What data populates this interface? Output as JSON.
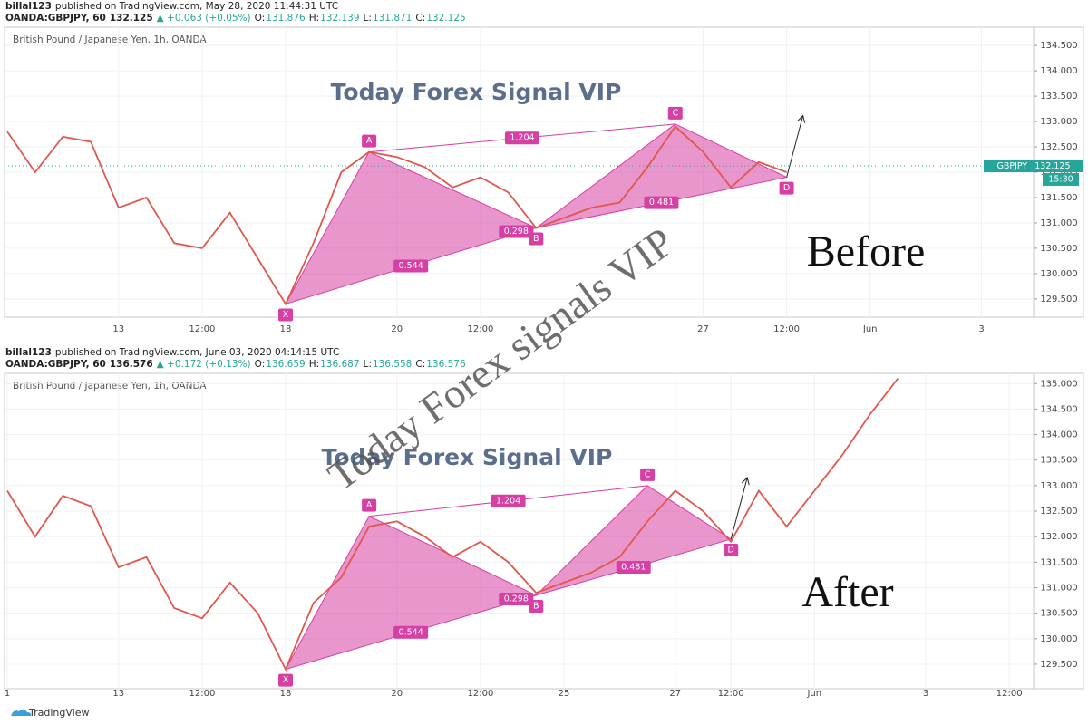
{
  "chart_data": [
    {
      "type": "line",
      "author": "billal123",
      "published": "published on TradingView.com, May 28, 2020 11:44:31 UTC",
      "quote": [
        "OANDA:GBPJPY, 60",
        "132.125",
        "▲ +0.063 (+0.05%)",
        "O:",
        "131.876",
        "H:",
        "132.139",
        "L:",
        "131.871",
        "C:",
        "132.125"
      ],
      "title": "British Pound / Japanese Yen, 1h, OANDA",
      "overlay_title": "Today Forex Signal VIP",
      "stage": "Before",
      "categories": [
        null,
        null,
        null,
        null,
        "13",
        null,
        null,
        "12:00",
        null,
        null,
        "18",
        null,
        null,
        null,
        "20",
        null,
        null,
        "12:00",
        null,
        null,
        null,
        null,
        null,
        null,
        null,
        "27",
        null,
        null,
        "12:00",
        null,
        null,
        "Jun",
        null,
        null,
        null,
        "3",
        null
      ],
      "color": "#e0574c",
      "values": [
        132.8,
        132.0,
        132.7,
        132.6,
        131.3,
        131.5,
        130.6,
        130.5,
        131.2,
        130.3,
        129.4,
        130.6,
        132.0,
        132.4,
        132.3,
        132.1,
        131.7,
        131.9,
        131.6,
        130.9,
        131.1,
        131.3,
        131.4,
        132.1,
        132.9,
        132.4,
        131.7,
        132.2,
        132.0,
        null,
        null,
        null,
        null,
        null,
        null,
        null,
        null
      ],
      "pattern": {
        "color": "#d63fa3",
        "values": [
          null,
          null,
          null,
          null,
          null,
          null,
          null,
          null,
          null,
          null,
          129.4,
          null,
          null,
          132.4,
          null,
          null,
          null,
          null,
          null,
          130.9,
          null,
          null,
          null,
          null,
          132.95,
          null,
          null,
          null,
          131.9,
          null,
          null,
          null,
          null,
          null,
          null,
          null,
          null
        ],
        "point_labels": [
          null,
          null,
          null,
          null,
          null,
          null,
          null,
          null,
          null,
          null,
          "X",
          null,
          null,
          "A",
          null,
          null,
          null,
          null,
          null,
          "B",
          null,
          null,
          null,
          null,
          "C",
          null,
          null,
          null,
          "D",
          null,
          null,
          null,
          null,
          null,
          null,
          null,
          null
        ],
        "ratios": [
          "0.544",
          "1.204",
          "0.298",
          "0.481"
        ]
      },
      "last_symbol": "GBPJPY",
      "last_price": 132.125,
      "countdown": "15:30",
      "ylim": [
        129.14,
        134.86
      ],
      "yticks": [
        {
          "value": 129.5,
          "label": "129.500"
        },
        {
          "value": 130,
          "label": "130.000"
        },
        {
          "value": 130.5,
          "label": "130.500"
        },
        {
          "value": 131,
          "label": "131.000"
        },
        {
          "value": 131.5,
          "label": "131.500"
        },
        {
          "value": 132,
          "label": "132.000"
        },
        {
          "value": 132.5,
          "label": "132.500"
        },
        {
          "value": 133,
          "label": "133.000"
        },
        {
          "value": 133.5,
          "label": "133.500"
        },
        {
          "value": 134,
          "label": "134.000"
        },
        {
          "value": 134.5,
          "label": "134.500"
        }
      ],
      "grid": true
    },
    {
      "type": "line",
      "author": "billal123",
      "published": "published on TradingView.com, June 03, 2020 04:14:15 UTC",
      "quote": [
        "OANDA:GBPJPY, 60",
        "136.576",
        "▲ +0.172 (+0.13%)",
        "O:",
        "136.659",
        "H:",
        "136.687",
        "L:",
        "136.558",
        "C:",
        "136.576"
      ],
      "title": "British Pound / Japanese Yen, 1h, OANDA",
      "overlay_title": "Today Forex Signal VIP",
      "stage": "After",
      "categories": [
        "1",
        null,
        null,
        null,
        "13",
        null,
        null,
        "12:00",
        null,
        null,
        "18",
        null,
        null,
        null,
        "20",
        null,
        null,
        "12:00",
        null,
        null,
        "25",
        null,
        null,
        null,
        "27",
        null,
        "12:00",
        null,
        null,
        "Jun",
        null,
        null,
        null,
        "3",
        null,
        null,
        "12:00"
      ],
      "color": "#e0574c",
      "values": [
        132.9,
        132.0,
        132.8,
        132.6,
        131.4,
        131.6,
        130.6,
        130.4,
        131.1,
        130.5,
        129.4,
        130.7,
        131.2,
        132.2,
        132.3,
        132.0,
        131.6,
        131.9,
        131.5,
        130.9,
        131.1,
        131.3,
        131.6,
        132.3,
        132.9,
        132.5,
        131.9,
        132.9,
        132.2,
        132.9,
        133.6,
        134.4,
        135.1,
        null,
        null,
        null,
        null
      ],
      "pattern": {
        "color": "#d63fa3",
        "values": [
          null,
          null,
          null,
          null,
          null,
          null,
          null,
          null,
          null,
          null,
          129.4,
          null,
          null,
          132.4,
          null,
          null,
          null,
          null,
          null,
          130.85,
          null,
          null,
          null,
          133.0,
          null,
          null,
          131.95,
          null,
          null,
          null,
          null,
          null,
          null,
          null,
          null,
          null,
          null
        ],
        "point_labels": [
          null,
          null,
          null,
          null,
          null,
          null,
          null,
          null,
          null,
          null,
          "X",
          null,
          null,
          "A",
          null,
          null,
          null,
          null,
          null,
          "B",
          null,
          null,
          null,
          "C",
          null,
          null,
          "D",
          null,
          null,
          null,
          null,
          null,
          null,
          null,
          null,
          null,
          null
        ],
        "ratios": [
          "0.544",
          "1.204",
          "0.298",
          "0.481"
        ]
      },
      "ylim": [
        129.02,
        135.2
      ],
      "yticks": [
        {
          "value": 129.5,
          "label": "129.500"
        },
        {
          "value": 130,
          "label": "130.000"
        },
        {
          "value": 130.5,
          "label": "130.500"
        },
        {
          "value": 131,
          "label": "131.000"
        },
        {
          "value": 131.5,
          "label": "131.500"
        },
        {
          "value": 132,
          "label": "132.000"
        },
        {
          "value": 132.5,
          "label": "132.500"
        },
        {
          "value": 133,
          "label": "133.000"
        },
        {
          "value": 133.5,
          "label": "133.500"
        },
        {
          "value": 134,
          "label": "134.000"
        },
        {
          "value": 134.5,
          "label": "134.500"
        },
        {
          "value": 135,
          "label": "135.000"
        }
      ],
      "grid": true
    }
  ],
  "watermark": "Today Forex signals VIP",
  "footer": "TradingView"
}
